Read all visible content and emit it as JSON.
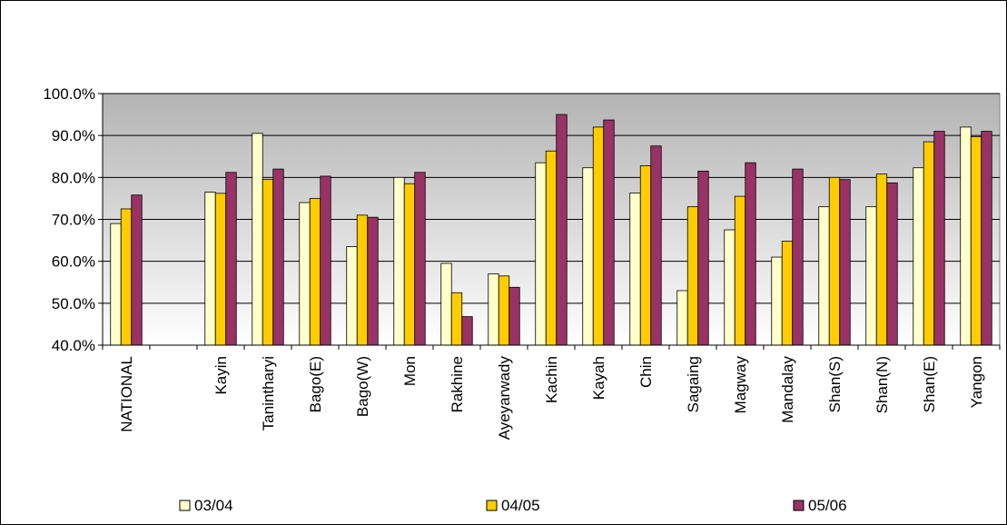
{
  "chart_data": {
    "type": "bar",
    "title": "",
    "xlabel": "",
    "ylabel": "",
    "ylim": [
      0.4,
      1.0
    ],
    "yticks": [
      "40.0%",
      "50.0%",
      "60.0%",
      "70.0%",
      "80.0%",
      "90.0%",
      "100.0%"
    ],
    "grid": true,
    "legend_position": "bottom",
    "categories": [
      "NATIONAL",
      "",
      "Kayin",
      "Tanintharyi",
      "Bago(E)",
      "Bago(W)",
      "Mon",
      "Rakhine",
      "Ayeyarwady",
      "Kachin",
      "Kayah",
      "Chin",
      "Sagaing",
      "Magway",
      "Mandalay",
      "Shan(S)",
      "Shan(N)",
      "Shan(E)",
      "Yangon"
    ],
    "series": [
      {
        "name": "03/04",
        "color": "#ffffcc",
        "values": [
          0.69,
          null,
          0.765,
          0.905,
          0.74,
          0.635,
          0.8,
          0.595,
          0.57,
          0.835,
          0.823,
          0.763,
          0.53,
          0.675,
          0.61,
          0.73,
          0.73,
          0.823,
          0.92
        ]
      },
      {
        "name": "04/05",
        "color": "#ffcc00",
        "values": [
          0.725,
          null,
          0.762,
          0.795,
          0.75,
          0.71,
          0.785,
          0.525,
          0.565,
          0.863,
          0.92,
          0.828,
          0.73,
          0.755,
          0.648,
          0.8,
          0.808,
          0.885,
          0.897
        ]
      },
      {
        "name": "05/06",
        "color": "#993366",
        "values": [
          0.758,
          null,
          0.812,
          0.82,
          0.803,
          0.705,
          0.812,
          0.468,
          0.538,
          0.95,
          0.937,
          0.875,
          0.815,
          0.835,
          0.82,
          0.795,
          0.787,
          0.91,
          0.91
        ]
      }
    ]
  }
}
